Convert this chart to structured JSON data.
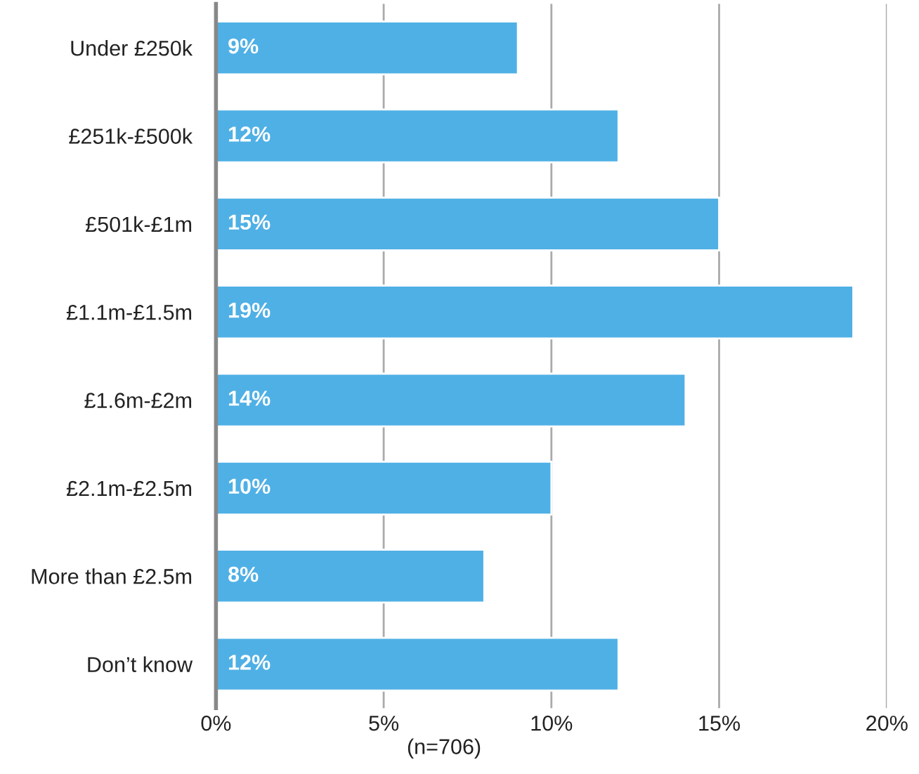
{
  "chart_data": {
    "type": "bar",
    "orientation": "horizontal",
    "categories": [
      "Under £250k",
      "£251k-£500k",
      "£501k-£1m",
      "£1.1m-£1.5m",
      "£1.6m-£2m",
      "£2.1m-£2.5m",
      "More than £2.5m",
      "Don’t know"
    ],
    "values": [
      9,
      12,
      15,
      19,
      14,
      10,
      8,
      12
    ],
    "value_labels": [
      "9%",
      "12%",
      "15%",
      "19%",
      "14%",
      "10%",
      "8%",
      "12%"
    ],
    "color": "#4fb0e5",
    "xlim": [
      0,
      20
    ],
    "xticks": [
      {
        "value": 0,
        "label": "0%"
      },
      {
        "value": 5,
        "label": "5%"
      },
      {
        "value": 10,
        "label": "10%"
      },
      {
        "value": 15,
        "label": "15%"
      },
      {
        "value": 20,
        "label": "20%"
      }
    ],
    "grid": "x",
    "annotations": [
      "(n=706)"
    ]
  }
}
